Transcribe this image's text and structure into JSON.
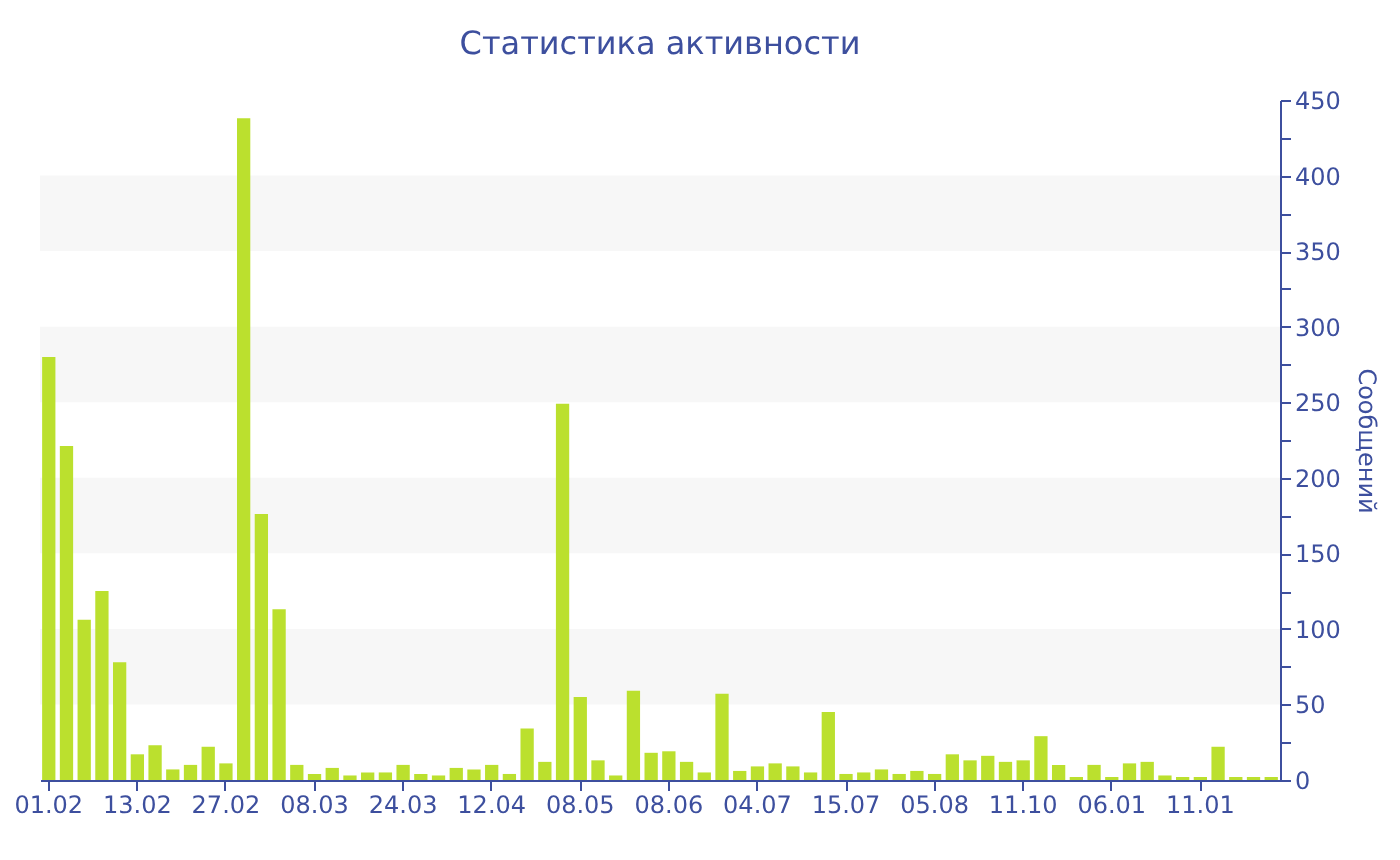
{
  "chart_data": {
    "type": "bar",
    "title": "Статистика активности",
    "ylabel": "Сообщений",
    "categories": [
      "01.02",
      null,
      null,
      null,
      null,
      "13.02",
      null,
      null,
      null,
      null,
      "27.02",
      null,
      null,
      null,
      null,
      "08.03",
      null,
      null,
      null,
      null,
      "24.03",
      null,
      null,
      null,
      null,
      "12.04",
      null,
      null,
      null,
      null,
      "08.05",
      null,
      null,
      null,
      null,
      "08.06",
      null,
      null,
      null,
      null,
      "04.07",
      null,
      null,
      null,
      null,
      "15.07",
      null,
      null,
      null,
      null,
      "05.08",
      null,
      null,
      null,
      null,
      "11.10",
      null,
      null,
      null,
      null,
      "06.01",
      null,
      null,
      null,
      null,
      "11.01",
      null,
      null,
      null,
      null
    ],
    "values": [
      280,
      221,
      106,
      125,
      78,
      17,
      23,
      7,
      10,
      22,
      11,
      438,
      176,
      113,
      10,
      4,
      8,
      3,
      5,
      5,
      10,
      4,
      3,
      8,
      7,
      10,
      4,
      34,
      12,
      249,
      55,
      13,
      3,
      59,
      18,
      19,
      12,
      5,
      57,
      6,
      9,
      11,
      9,
      5,
      45,
      4,
      5,
      7,
      4,
      6,
      4,
      17,
      13,
      16,
      12,
      13,
      29,
      10,
      2,
      10,
      2,
      11,
      12,
      3,
      2,
      2,
      22,
      2,
      2,
      2
    ],
    "color": "#bbe02e",
    "ylim": [
      0,
      450
    ],
    "yticks": [
      0,
      {
        "value": 25,
        "label": null
      },
      50,
      {
        "value": 75,
        "label": null
      },
      100,
      {
        "value": 125,
        "label": null
      },
      150,
      {
        "value": 175,
        "label": null
      },
      200,
      {
        "value": 225,
        "label": null
      },
      250,
      {
        "value": 275,
        "label": null
      },
      300,
      {
        "value": 325,
        "label": null
      },
      350,
      {
        "value": 375,
        "label": null
      },
      400,
      {
        "value": 425,
        "label": null
      },
      450
    ],
    "bands": [
      {
        "axis": "y",
        "from": 50,
        "to": 100,
        "color": "#f7f7f7"
      },
      {
        "axis": "y",
        "from": 150,
        "to": 200,
        "color": "#f7f7f7"
      },
      {
        "axis": "y",
        "from": 250,
        "to": 300,
        "color": "#f7f7f7"
      },
      {
        "axis": "y",
        "from": 350,
        "to": 400,
        "color": "#f7f7f7"
      }
    ],
    "grid": false
  }
}
